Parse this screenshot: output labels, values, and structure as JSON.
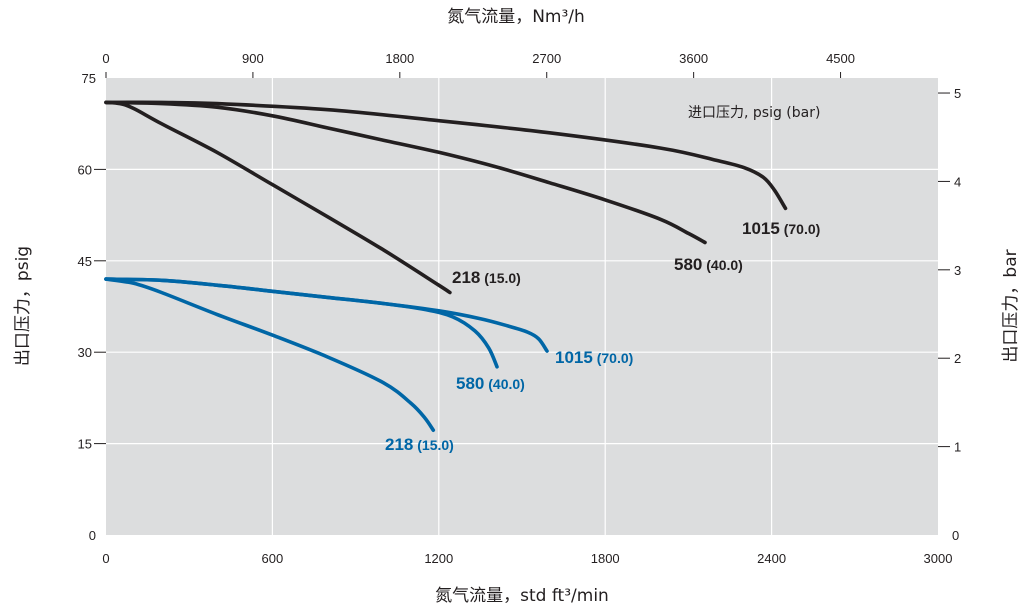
{
  "chart_data": {
    "type": "line",
    "top_axis": {
      "label": "氮气流量，Nm³/h",
      "ticks": [
        "0",
        "900",
        "1800",
        "2700",
        "3600",
        "4500"
      ],
      "range": [
        0,
        5097
      ]
    },
    "bottom_axis": {
      "label": "氮气流量，std ft³/min",
      "ticks": [
        "0",
        "600",
        "1200",
        "1800",
        "2400",
        "3000"
      ],
      "range": [
        0,
        3000
      ]
    },
    "left_axis": {
      "label": "出口压力，psig",
      "ticks": [
        "0",
        "15",
        "30",
        "45",
        "60",
        "75"
      ],
      "range": [
        0,
        75
      ]
    },
    "right_axis": {
      "label": "出口压力，bar",
      "ticks": [
        "0",
        "1",
        "2",
        "3",
        "4",
        "5"
      ],
      "range": [
        0,
        5.17
      ]
    },
    "legend_title": "进口压力, psig (bar)",
    "grid": true,
    "series": [
      {
        "name": "1015",
        "sub": "(70.0)",
        "color": "#231f20",
        "x": [
          0,
          200,
          400,
          800,
          1200,
          1600,
          2000,
          2200,
          2300,
          2370,
          2410,
          2450
        ],
        "y": [
          71,
          71,
          70.8,
          69.8,
          68,
          66,
          63.5,
          61.5,
          60.3,
          58.7,
          56.6,
          53.6
        ]
      },
      {
        "name": "580",
        "sub": "(40.0)",
        "color": "#231f20",
        "x": [
          0,
          200,
          400,
          600,
          800,
          1000,
          1200,
          1400,
          1600,
          1800,
          2000,
          2100,
          2160
        ],
        "y": [
          71,
          70.8,
          70.2,
          68.8,
          66.8,
          64.8,
          62.8,
          60.5,
          57.8,
          55,
          51.8,
          49.5,
          48
        ]
      },
      {
        "name": "218",
        "sub": "(15.0)",
        "color": "#231f20",
        "x": [
          0,
          50,
          100,
          200,
          400,
          600,
          800,
          1000,
          1200,
          1240
        ],
        "y": [
          71,
          70.8,
          70,
          67.5,
          62.8,
          57.5,
          52.2,
          46.8,
          41,
          39.8
        ]
      },
      {
        "name": "1015",
        "sub": "(70.0)",
        "color": "#0066a6",
        "x": [
          0,
          200,
          400,
          600,
          800,
          1000,
          1200,
          1350,
          1450,
          1520,
          1560,
          1590
        ],
        "y": [
          42,
          41.8,
          41,
          40,
          39,
          38,
          36.8,
          35.5,
          34.3,
          33.3,
          32.2,
          30.2
        ]
      },
      {
        "name": "580",
        "sub": "(40.0)",
        "color": "#0066a6",
        "x": [
          0,
          200,
          400,
          600,
          800,
          1000,
          1150,
          1250,
          1330,
          1380,
          1410
        ],
        "y": [
          42,
          41.8,
          41,
          40,
          39,
          38,
          37,
          35.8,
          33.5,
          30.7,
          27.6
        ]
      },
      {
        "name": "218",
        "sub": "(15.0)",
        "color": "#0066a6",
        "x": [
          0,
          100,
          200,
          400,
          600,
          800,
          1000,
          1100,
          1150,
          1180
        ],
        "y": [
          42,
          41.3,
          39.8,
          36.2,
          32.8,
          29.2,
          25,
          21.6,
          19.2,
          17.2
        ]
      }
    ]
  }
}
